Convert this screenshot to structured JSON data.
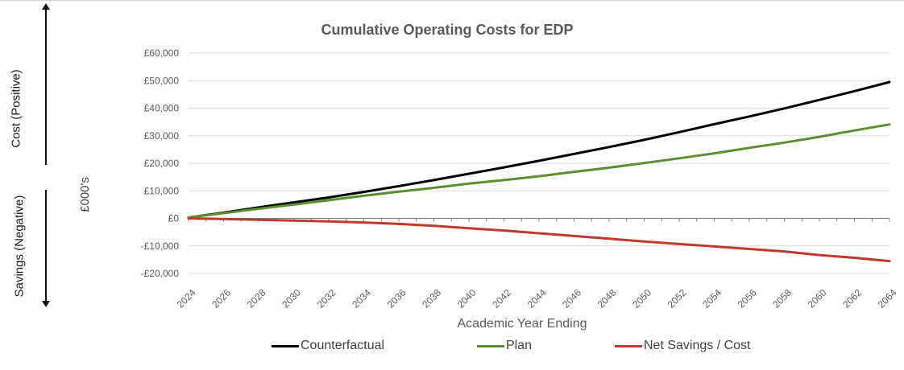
{
  "chart_data": {
    "type": "line",
    "title": "Cumulative Operating Costs for EDP",
    "xlabel": "Academic Year Ending",
    "ylabel": "£000's",
    "ylim": [
      -20000,
      60000
    ],
    "yticks": [
      -20000,
      -10000,
      0,
      10000,
      20000,
      30000,
      40000,
      50000,
      60000
    ],
    "ytick_labels": [
      "-£20,000",
      "-£10,000",
      "£0",
      "£10,000",
      "£20,000",
      "£30,000",
      "£40,000",
      "£50,000",
      "£60,000"
    ],
    "xlim": [
      2024,
      2064
    ],
    "xticks": [
      2024,
      2026,
      2028,
      2030,
      2032,
      2034,
      2036,
      2038,
      2040,
      2042,
      2044,
      2046,
      2048,
      2050,
      2052,
      2054,
      2056,
      2058,
      2060,
      2062,
      2064
    ],
    "x": [
      2024,
      2026,
      2028,
      2030,
      2032,
      2034,
      2036,
      2038,
      2040,
      2042,
      2044,
      2046,
      2048,
      2050,
      2052,
      2054,
      2056,
      2058,
      2060,
      2062,
      2064
    ],
    "series": [
      {
        "name": "Counterfactual",
        "color": "#000000",
        "values": [
          300,
          2100,
          4000,
          5800,
          7600,
          9600,
          11700,
          13900,
          16200,
          18500,
          20900,
          23400,
          25900,
          28500,
          31300,
          34200,
          37000,
          39900,
          43000,
          46200,
          49500
        ]
      },
      {
        "name": "Plan",
        "color": "#5b8f2e",
        "values": [
          300,
          1900,
          3500,
          5000,
          6600,
          8200,
          9700,
          11100,
          12600,
          13900,
          15300,
          16900,
          18400,
          20100,
          21800,
          23600,
          25600,
          27500,
          29600,
          31900,
          34100
        ]
      },
      {
        "name": "Net Savings / Cost",
        "color": "#c0392b",
        "values": [
          0,
          -200,
          -500,
          -800,
          -1100,
          -1500,
          -2000,
          -2700,
          -3600,
          -4400,
          -5400,
          -6400,
          -7400,
          -8400,
          -9300,
          -10200,
          -11100,
          -12000,
          -13300,
          -14300,
          -15500
        ]
      }
    ],
    "legend_position": "bottom",
    "grid": true
  },
  "side_labels": {
    "cost": "Cost (Positive)",
    "savings": "Savings (Negative)"
  },
  "colors": {
    "gridline": "#d9d9d9",
    "axis": "#7f7f7f",
    "text": "#595959"
  }
}
